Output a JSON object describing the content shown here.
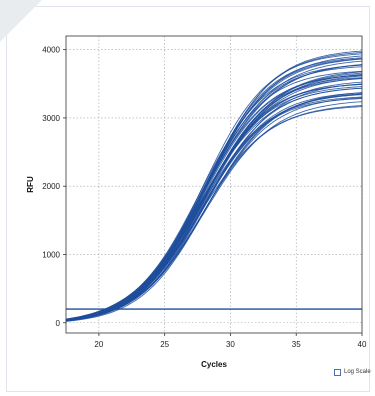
{
  "chart_data": {
    "type": "line",
    "title": "",
    "xlabel": "Cycles",
    "ylabel": "RFU",
    "xlim": [
      17.5,
      40
    ],
    "ylim": [
      -150,
      4200
    ],
    "x_ticks": [
      "20",
      "25",
      "30",
      "35",
      "40"
    ],
    "y_ticks": [
      "0",
      "1000",
      "2000",
      "3000",
      "4000"
    ],
    "grid": true,
    "line_color": "#1f4e9c",
    "threshold_color": "#1f4e9c",
    "threshold": 200,
    "curve_model": "sigmoid",
    "curve_count": 40,
    "plateau_range": [
      3200,
      4050
    ],
    "midpoint_range": [
      27.6,
      28.2
    ],
    "slope_range": [
      2.45,
      2.7
    ],
    "series": [
      {
        "x": [
          17.5,
          20,
          22,
          24,
          26,
          28,
          30,
          32,
          34,
          36,
          38,
          40
        ],
        "values": [
          -20,
          20,
          120,
          450,
          1150,
          2000,
          2750,
          3250,
          3550,
          3720,
          3800,
          3850
        ]
      },
      {
        "x": [
          17.5,
          20,
          22,
          24,
          26,
          28,
          30,
          32,
          34,
          36,
          38,
          40
        ],
        "values": [
          -20,
          15,
          100,
          400,
          1000,
          1750,
          2400,
          2850,
          3100,
          3250,
          3320,
          3350
        ]
      }
    ]
  },
  "controls": {
    "log_scale_label": "Log Scale",
    "log_scale_checked": false
  }
}
